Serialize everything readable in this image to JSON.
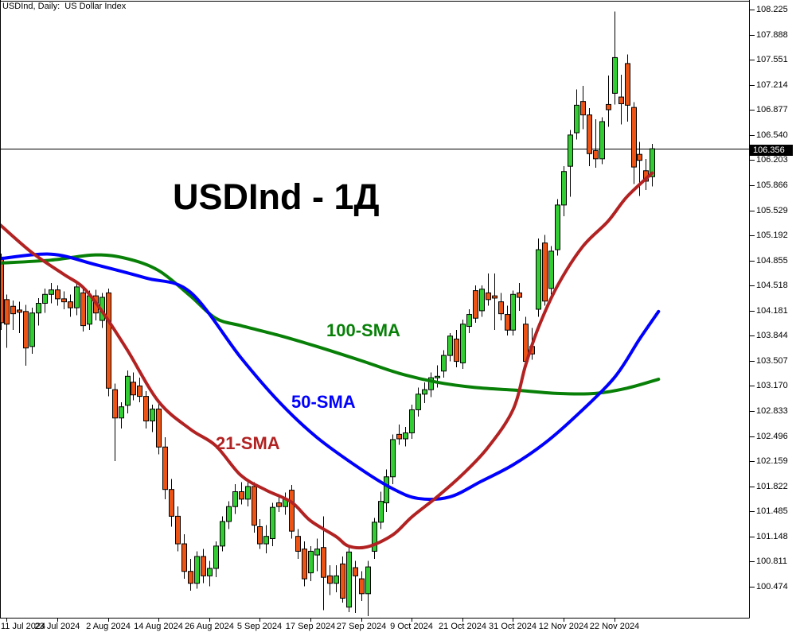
{
  "window": {
    "header": "USDInd, Daily:  US Dollar Index"
  },
  "watermark": "USDInd - 1Д",
  "price_badge": "106.356",
  "sma_labels": {
    "sma100": "100-SMA",
    "sma50": "50-SMA",
    "sma21": "21-SMA"
  },
  "colors": {
    "background": "#ffffff",
    "text": "#000000",
    "bull": "#32cd32",
    "bear": "#ed5314",
    "candle_border": "#000000",
    "wick": "#000000",
    "sma21": "#b22222",
    "sma50": "#0000ff",
    "sma100": "#088008",
    "price_line": "#000000",
    "badge_bg": "#000000",
    "badge_text": "#ffffff"
  },
  "chart_data": {
    "type": "candlestick",
    "title": "USDInd - 1Д",
    "symbol": "USDInd",
    "timeframe": "Daily",
    "description": "US Dollar Index",
    "current_price": 106.356,
    "grid": false,
    "legend_position": "inline-labels",
    "ylim": [
      100.11,
      108.35
    ],
    "xrange": [
      "10 Jul 2024",
      "2 Dec 2024"
    ],
    "price_axis_ticks": [
      108.225,
      107.888,
      107.551,
      107.214,
      106.877,
      106.54,
      106.203,
      105.866,
      105.529,
      105.192,
      104.855,
      104.518,
      104.181,
      103.844,
      103.507,
      103.17,
      102.833,
      102.496,
      102.159,
      101.822,
      101.485,
      101.148,
      100.811,
      100.474
    ],
    "time_axis_ticks": [
      {
        "label": "11 Jul 2024",
        "i": 1
      },
      {
        "label": "23 Jul 2024",
        "i": 9
      },
      {
        "label": "2 Aug 2024",
        "i": 17
      },
      {
        "label": "14 Aug 2024",
        "i": 25
      },
      {
        "label": "26 Aug 2024",
        "i": 33
      },
      {
        "label": "5 Sep 2024",
        "i": 41
      },
      {
        "label": "17 Sep 2024",
        "i": 49
      },
      {
        "label": "27 Sep 2024",
        "i": 57
      },
      {
        "label": "9 Oct 2024",
        "i": 65
      },
      {
        "label": "21 Oct 2024",
        "i": 73
      },
      {
        "label": "31 Oct 2024",
        "i": 81
      },
      {
        "label": "12 Nov 2024",
        "i": 89
      },
      {
        "label": "22 Nov 2024",
        "i": 97
      }
    ],
    "candle_format": [
      "date",
      "open",
      "high",
      "low",
      "close"
    ],
    "candles": [
      [
        "10 Jul",
        104.9,
        104.95,
        103.92,
        104.02
      ],
      [
        "11 Jul",
        104.33,
        104.4,
        103.68,
        104.0
      ],
      [
        "12 Jul",
        104.24,
        104.32,
        103.92,
        104.14
      ],
      [
        "15 Jul",
        104.19,
        104.3,
        103.88,
        104.16
      ],
      [
        "16 Jul",
        104.17,
        104.26,
        103.44,
        103.68
      ],
      [
        "17 Jul",
        103.7,
        104.22,
        103.6,
        104.15
      ],
      [
        "18 Jul",
        104.15,
        104.35,
        103.98,
        104.28
      ],
      [
        "19 Jul",
        104.28,
        104.48,
        104.15,
        104.4
      ],
      [
        "22 Jul",
        104.4,
        104.55,
        104.28,
        104.46
      ],
      [
        "23 Jul",
        104.46,
        104.52,
        104.25,
        104.34
      ],
      [
        "24 Jul",
        104.34,
        104.44,
        104.2,
        104.3
      ],
      [
        "25 Jul",
        104.3,
        104.4,
        104.1,
        104.22
      ],
      [
        "26 Jul",
        104.22,
        104.55,
        104.12,
        104.5
      ],
      [
        "29 Jul",
        104.42,
        104.5,
        103.9,
        103.98
      ],
      [
        "30 Jul",
        104.0,
        104.45,
        103.92,
        104.38
      ],
      [
        "31 Jul",
        104.38,
        104.46,
        104.05,
        104.15
      ],
      [
        "1 Aug",
        104.05,
        104.42,
        103.95,
        104.36
      ],
      [
        "2 Aug",
        104.42,
        104.48,
        103.03,
        103.14
      ],
      [
        "5 Aug",
        103.12,
        103.2,
        102.16,
        102.74
      ],
      [
        "6 Aug",
        102.74,
        102.95,
        102.6,
        102.89
      ],
      [
        "7 Aug",
        102.91,
        103.38,
        102.8,
        103.3
      ],
      [
        "8 Aug",
        103.22,
        103.35,
        102.98,
        103.05
      ],
      [
        "9 Aug",
        103.17,
        103.28,
        102.95,
        103.03
      ],
      [
        "12 Aug",
        103.03,
        103.1,
        102.6,
        102.7
      ],
      [
        "13 Aug",
        102.7,
        102.92,
        102.55,
        102.86
      ],
      [
        "14 Aug",
        102.86,
        102.95,
        102.25,
        102.35
      ],
      [
        "15 Aug",
        102.35,
        102.48,
        101.65,
        101.78
      ],
      [
        "16 Aug",
        101.78,
        101.92,
        101.28,
        101.42
      ],
      [
        "19 Aug",
        101.42,
        101.55,
        100.95,
        101.05
      ],
      [
        "20 Aug",
        101.05,
        101.18,
        100.58,
        100.68
      ],
      [
        "21 Aug",
        100.68,
        100.85,
        100.42,
        100.52
      ],
      [
        "22 Aug",
        100.52,
        100.95,
        100.45,
        100.88
      ],
      [
        "23 Aug",
        100.88,
        100.98,
        100.52,
        100.62
      ],
      [
        "26 Aug",
        100.62,
        100.82,
        100.48,
        100.72
      ],
      [
        "27 Aug",
        100.72,
        101.08,
        100.6,
        101.02
      ],
      [
        "28 Aug",
        101.02,
        101.42,
        100.95,
        101.35
      ],
      [
        "29 Aug",
        101.35,
        101.62,
        101.25,
        101.55
      ],
      [
        "30 Aug",
        101.55,
        101.85,
        101.45,
        101.75
      ],
      [
        "2 Sep",
        101.75,
        101.88,
        101.58,
        101.65
      ],
      [
        "3 Sep",
        101.65,
        101.92,
        101.55,
        101.82
      ],
      [
        "4 Sep",
        101.82,
        101.88,
        101.2,
        101.3
      ],
      [
        "5 Sep",
        101.28,
        101.38,
        100.98,
        101.05
      ],
      [
        "6 Sep",
        101.05,
        101.3,
        100.92,
        101.15
      ],
      [
        "9 Sep",
        101.12,
        101.6,
        101.02,
        101.54
      ],
      [
        "10 Sep",
        101.6,
        101.72,
        101.48,
        101.55
      ],
      [
        "11 Sep",
        101.55,
        101.74,
        101.44,
        101.65
      ],
      [
        "12 Sep",
        101.77,
        101.84,
        101.12,
        101.22
      ],
      [
        "13 Sep",
        101.15,
        101.25,
        100.85,
        100.95
      ],
      [
        "16 Sep",
        100.98,
        101.08,
        100.48,
        100.58
      ],
      [
        "17 Sep",
        100.66,
        101.02,
        100.55,
        100.95
      ],
      [
        "18 Sep",
        100.9,
        101.12,
        100.68,
        100.98
      ],
      [
        "19 Sep",
        101.0,
        101.42,
        100.16,
        100.6
      ],
      [
        "20 Sep",
        100.62,
        100.76,
        100.36,
        100.52
      ],
      [
        "23 Sep",
        100.52,
        100.76,
        100.4,
        100.62
      ],
      [
        "24 Sep",
        100.78,
        100.88,
        100.26,
        100.32
      ],
      [
        "25 Sep",
        100.2,
        101.0,
        100.13,
        100.94
      ],
      [
        "26 Sep",
        100.73,
        100.82,
        100.12,
        100.62
      ],
      [
        "27 Sep",
        100.58,
        100.68,
        100.28,
        100.38
      ],
      [
        "30 Sep",
        100.38,
        100.82,
        100.08,
        100.74
      ],
      [
        "1 Oct",
        100.95,
        101.4,
        100.85,
        101.34
      ],
      [
        "2 Oct",
        101.34,
        101.75,
        101.25,
        101.62
      ],
      [
        "3 Oct",
        101.6,
        102.05,
        101.48,
        101.95
      ],
      [
        "4 Oct",
        101.95,
        102.52,
        101.85,
        102.45
      ],
      [
        "7 Oct",
        102.52,
        102.65,
        102.38,
        102.46
      ],
      [
        "8 Oct",
        102.46,
        102.62,
        102.36,
        102.54
      ],
      [
        "9 Oct",
        102.54,
        102.92,
        102.46,
        102.85
      ],
      [
        "10 Oct",
        102.85,
        103.15,
        102.76,
        103.06
      ],
      [
        "11 Oct",
        103.06,
        103.22,
        102.94,
        103.12
      ],
      [
        "14 Oct",
        103.12,
        103.35,
        103.02,
        103.28
      ],
      [
        "15 Oct",
        103.28,
        103.45,
        103.15,
        103.3
      ],
      [
        "16 Oct",
        103.37,
        103.65,
        103.28,
        103.58
      ],
      [
        "17 Oct",
        103.58,
        103.88,
        103.5,
        103.84
      ],
      [
        "18 Oct",
        103.8,
        103.92,
        103.42,
        103.5
      ],
      [
        "21 Oct",
        103.48,
        104.06,
        103.4,
        104.0
      ],
      [
        "22 Oct",
        103.97,
        104.2,
        103.88,
        104.13
      ],
      [
        "23 Oct",
        104.45,
        104.52,
        104.02,
        104.08
      ],
      [
        "24 Oct",
        104.18,
        104.52,
        104.1,
        104.47
      ],
      [
        "25 Oct",
        104.42,
        104.68,
        104.25,
        104.33
      ],
      [
        "28 Oct",
        104.38,
        104.68,
        103.92,
        104.35
      ],
      [
        "29 Oct",
        104.3,
        104.42,
        104.05,
        104.14
      ],
      [
        "30 Oct",
        104.13,
        104.25,
        103.85,
        103.92
      ],
      [
        "31 Oct",
        103.92,
        104.45,
        103.85,
        104.4
      ],
      [
        "1 Nov",
        104.42,
        104.55,
        104.18,
        104.36
      ],
      [
        "4 Nov",
        104.0,
        104.1,
        103.42,
        103.5
      ],
      [
        "5 Nov",
        103.7,
        103.95,
        103.52,
        103.6
      ],
      [
        "6 Nov",
        104.2,
        105.15,
        104.1,
        105.0
      ],
      [
        "7 Nov",
        105.09,
        105.2,
        104.25,
        104.31
      ],
      [
        "8 Nov",
        104.48,
        105.05,
        104.4,
        104.98
      ],
      [
        "11 Nov",
        105.0,
        105.68,
        104.92,
        105.6
      ],
      [
        "12 Nov",
        105.6,
        106.12,
        105.45,
        106.05
      ],
      [
        "13 Nov",
        106.12,
        106.61,
        105.71,
        106.54
      ],
      [
        "14 Nov",
        106.57,
        107.15,
        106.48,
        106.94
      ],
      [
        "15 Nov",
        106.99,
        107.2,
        106.62,
        106.81
      ],
      [
        "18 Nov",
        106.81,
        106.9,
        106.12,
        106.29
      ],
      [
        "19 Nov",
        106.33,
        106.75,
        106.1,
        106.22
      ],
      [
        "20 Nov",
        106.22,
        106.78,
        106.15,
        106.72
      ],
      [
        "21 Nov",
        106.95,
        107.34,
        106.65,
        106.88
      ],
      [
        "22 Nov",
        107.1,
        108.2,
        106.95,
        107.58
      ],
      [
        "25 Nov",
        107.05,
        107.35,
        106.68,
        106.96
      ],
      [
        "26 Nov",
        107.5,
        107.62,
        106.72,
        106.94
      ],
      [
        "27 Nov",
        106.91,
        106.98,
        105.88,
        106.11
      ],
      [
        "28 Nov",
        106.28,
        106.45,
        105.72,
        106.2
      ],
      [
        "29 Nov",
        106.06,
        106.22,
        105.8,
        105.92
      ],
      [
        "2 Dec",
        105.98,
        106.42,
        105.85,
        106.356
      ]
    ],
    "sma_series": [
      {
        "name": "100-SMA",
        "color_key": "sma100",
        "points": [
          [
            0,
            104.82
          ],
          [
            8,
            104.86
          ],
          [
            15,
            104.93
          ],
          [
            20,
            104.88
          ],
          [
            25,
            104.72
          ],
          [
            30,
            104.38
          ],
          [
            34,
            104.08
          ],
          [
            38,
            103.98
          ],
          [
            44,
            103.85
          ],
          [
            50,
            103.7
          ],
          [
            57,
            103.51
          ],
          [
            63,
            103.34
          ],
          [
            69,
            103.22
          ],
          [
            75,
            103.15
          ],
          [
            82,
            103.11
          ],
          [
            88,
            103.07
          ],
          [
            94,
            103.07
          ],
          [
            99,
            103.14
          ],
          [
            104,
            103.26
          ]
        ]
      },
      {
        "name": "50-SMA",
        "color_key": "sma50",
        "points": [
          [
            0,
            104.88
          ],
          [
            8,
            104.94
          ],
          [
            15,
            104.8
          ],
          [
            23,
            104.62
          ],
          [
            30,
            104.43
          ],
          [
            38,
            103.55
          ],
          [
            44,
            102.96
          ],
          [
            50,
            102.48
          ],
          [
            57,
            102.05
          ],
          [
            62,
            101.79
          ],
          [
            66,
            101.66
          ],
          [
            71,
            101.68
          ],
          [
            76,
            101.89
          ],
          [
            81,
            102.11
          ],
          [
            86,
            102.4
          ],
          [
            91,
            102.77
          ],
          [
            97,
            103.28
          ],
          [
            101,
            103.8
          ],
          [
            104,
            104.17
          ]
        ]
      },
      {
        "name": "21-SMA",
        "color_key": "sma21",
        "points": [
          [
            0,
            105.33
          ],
          [
            5,
            104.96
          ],
          [
            10,
            104.67
          ],
          [
            13,
            104.5
          ],
          [
            16,
            104.18
          ],
          [
            20,
            103.66
          ],
          [
            25,
            102.96
          ],
          [
            30,
            102.59
          ],
          [
            34,
            102.37
          ],
          [
            38,
            101.97
          ],
          [
            42,
            101.77
          ],
          [
            46,
            101.61
          ],
          [
            49,
            101.36
          ],
          [
            53,
            101.15
          ],
          [
            55,
            101.02
          ],
          [
            58,
            101.01
          ],
          [
            62,
            101.17
          ],
          [
            65,
            101.41
          ],
          [
            69,
            101.68
          ],
          [
            73,
            101.98
          ],
          [
            77,
            102.34
          ],
          [
            81,
            102.85
          ],
          [
            83,
            103.45
          ],
          [
            85,
            103.95
          ],
          [
            88,
            104.51
          ],
          [
            92,
            105.04
          ],
          [
            96,
            105.38
          ],
          [
            99,
            105.71
          ],
          [
            103,
            106.03
          ]
        ]
      }
    ]
  }
}
